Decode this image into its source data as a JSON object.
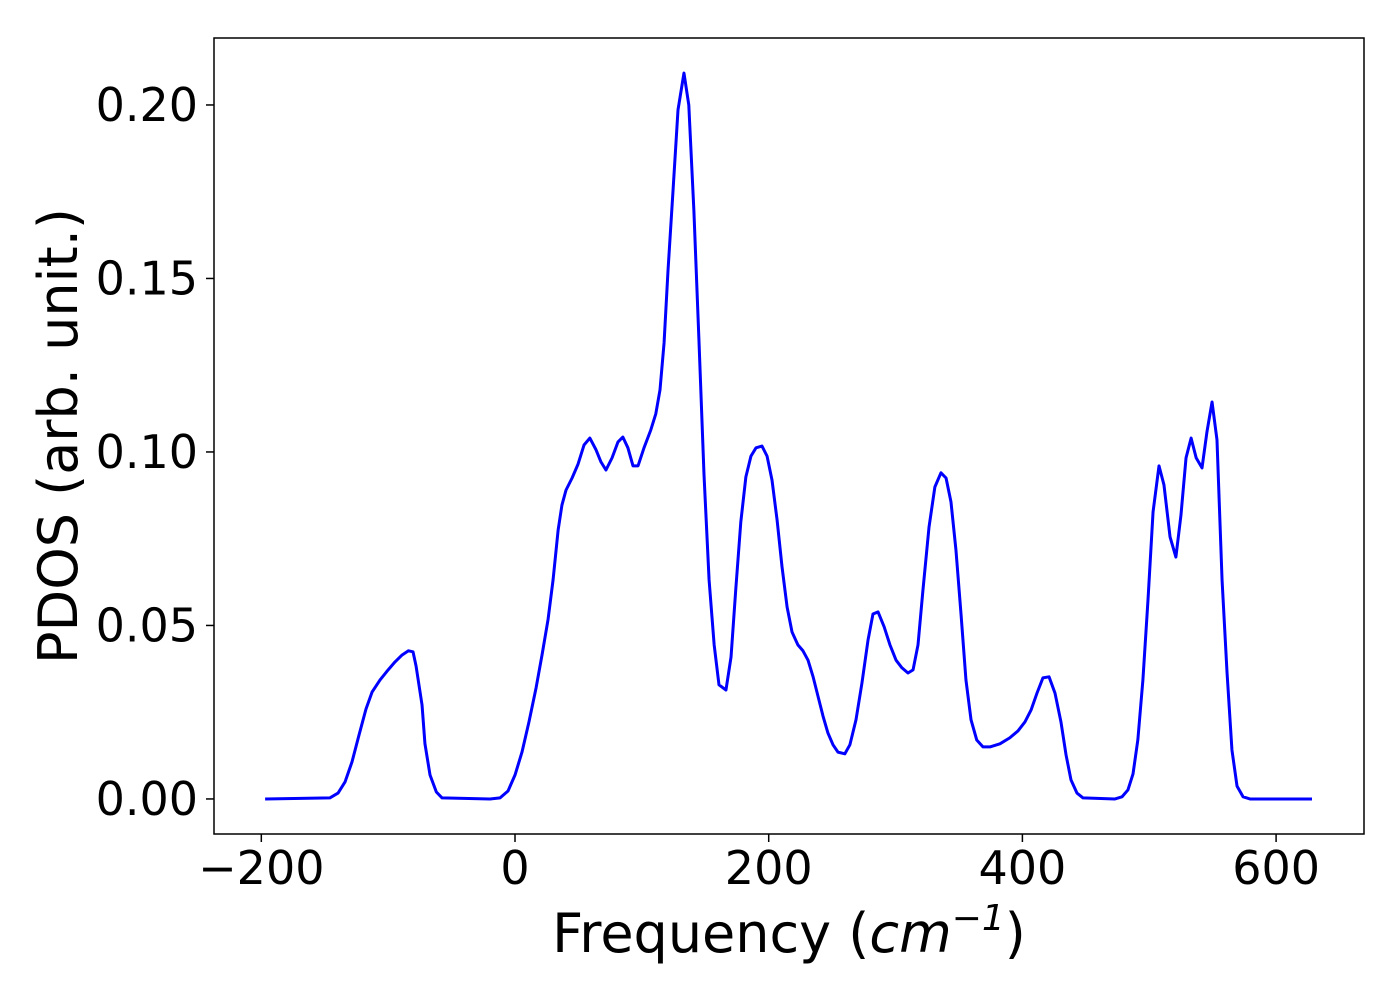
{
  "chart_data": {
    "type": "line",
    "x_label": [
      "Frequency (",
      "cm",
      "−1",
      ")"
    ],
    "y_label": "PDOS (arb. unit.)",
    "xlim": [
      -237.3,
      669.3
    ],
    "ylim": [
      -0.0101,
      0.2193
    ],
    "xticks": [
      {
        "value": -200,
        "label": "−200"
      },
      0,
      200,
      400,
      600
    ],
    "yticks": [
      {
        "value": 0,
        "label": "0.00"
      },
      {
        "value": 0.05,
        "label": "0.05"
      },
      {
        "value": 0.1,
        "label": "0.10"
      },
      {
        "value": 0.15,
        "label": "0.15"
      },
      {
        "value": 0.2,
        "label": "0.20"
      }
    ],
    "grid": false,
    "series": [
      {
        "color": "#0000ff",
        "x": [
          -197,
          -146,
          -139.5,
          -134,
          -128.5,
          -123,
          -117.5,
          -112.7,
          -106.4,
          -100,
          -94.6,
          -89,
          -84,
          -80.4,
          -78,
          -73.3,
          -71,
          -67,
          -62,
          -57.5,
          -19.7,
          -11.8,
          -5.5,
          0,
          5.5,
          11,
          16.6,
          21.3,
          26,
          30,
          34,
          37,
          40.2,
          45,
          49.7,
          54.4,
          59,
          63.9,
          67.8,
          71.7,
          76.5,
          81.2,
          85,
          89,
          93,
          97,
          101.7,
          107,
          111,
          114.3,
          117.5,
          120.6,
          124.6,
          128.5,
          133.2,
          137,
          141,
          145,
          149,
          153,
          157,
          160.8,
          166.3,
          170.3,
          174,
          178,
          182,
          186,
          190,
          194.7,
          198.7,
          202.6,
          206.6,
          210.5,
          214.5,
          218.4,
          223,
          227,
          231,
          235,
          239,
          242.8,
          246.7,
          250.7,
          254.6,
          260,
          264,
          268.8,
          273.5,
          278.3,
          282.2,
          286.2,
          291,
          295.6,
          300.4,
          305,
          309.8,
          313.8,
          317.7,
          321.6,
          326.4,
          331,
          335.8,
          339.8,
          343.7,
          347.6,
          351.6,
          355.5,
          359.5,
          364,
          368.9,
          374.4,
          382.3,
          390,
          396.5,
          402,
          406.8,
          411.5,
          416.2,
          421,
          425.7,
          430.4,
          434.4,
          438.3,
          443,
          447.8,
          473,
          478.5,
          483.2,
          487.2,
          491,
          495,
          499,
          503,
          507.7,
          511.6,
          516.4,
          521,
          525,
          529,
          533,
          537,
          541.6,
          545.5,
          549.5,
          553.4,
          557.4,
          561.3,
          565.2,
          569.2,
          574,
          579.4,
          628.3
        ],
        "values": [
          0,
          0.0003,
          0.0017,
          0.0049,
          0.0107,
          0.0184,
          0.0259,
          0.0308,
          0.0343,
          0.0372,
          0.0395,
          0.0415,
          0.0427,
          0.0424,
          0.0383,
          0.0271,
          0.0159,
          0.0069,
          0.002,
          0.0003,
          0,
          0.0003,
          0.0023,
          0.0069,
          0.0135,
          0.0222,
          0.032,
          0.0415,
          0.0516,
          0.0631,
          0.0775,
          0.0847,
          0.089,
          0.0925,
          0.0965,
          0.102,
          0.104,
          0.1006,
          0.0971,
          0.0948,
          0.0983,
          0.1029,
          0.1043,
          0.1012,
          0.096,
          0.096,
          0.1012,
          0.1063,
          0.111,
          0.1179,
          0.1314,
          0.1522,
          0.1755,
          0.1986,
          0.2092,
          0.2,
          0.1697,
          0.1323,
          0.0934,
          0.0631,
          0.0444,
          0.0329,
          0.0314,
          0.0409,
          0.0602,
          0.0798,
          0.0928,
          0.0988,
          0.1012,
          0.1017,
          0.0988,
          0.0919,
          0.0804,
          0.0669,
          0.0553,
          0.0481,
          0.0444,
          0.0427,
          0.04,
          0.0352,
          0.0294,
          0.0239,
          0.019,
          0.0156,
          0.0135,
          0.013,
          0.0156,
          0.0228,
          0.0334,
          0.0458,
          0.0533,
          0.0539,
          0.0496,
          0.0444,
          0.04,
          0.0378,
          0.0363,
          0.0372,
          0.0444,
          0.0602,
          0.0784,
          0.0899,
          0.094,
          0.0925,
          0.0856,
          0.0718,
          0.0533,
          0.0343,
          0.0228,
          0.017,
          0.015,
          0.015,
          0.0159,
          0.0176,
          0.0196,
          0.0222,
          0.0256,
          0.0305,
          0.0349,
          0.0352,
          0.0305,
          0.0222,
          0.0127,
          0.0055,
          0.0017,
          0.0003,
          0,
          0.0006,
          0.0026,
          0.0072,
          0.017,
          0.0343,
          0.0573,
          0.0827,
          0.096,
          0.0905,
          0.0755,
          0.0697,
          0.0818,
          0.0983,
          0.104,
          0.0983,
          0.0954,
          0.1058,
          0.1144,
          0.1035,
          0.0631,
          0.0366,
          0.0141,
          0.0037,
          0.0006,
          0,
          0
        ]
      }
    ]
  }
}
